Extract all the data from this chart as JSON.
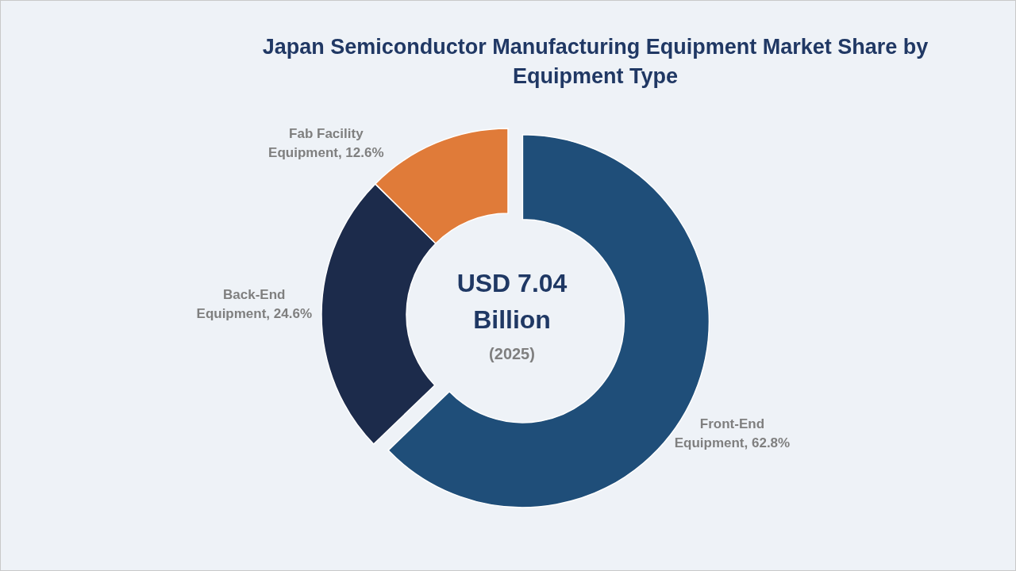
{
  "chart_data": {
    "type": "donut",
    "title": "Japan Semiconductor Manufacturing Equipment Market Share by Equipment Type",
    "categories": [
      "Front-End Equipment",
      "Back-End Equipment",
      "Fab Facility Equipment"
    ],
    "values": [
      62.8,
      24.6,
      12.6
    ],
    "colors": [
      "#1f4e79",
      "#1c2b4b",
      "#e07b39"
    ],
    "value_labels": [
      "62.8%",
      "24.6%",
      "12.6%"
    ],
    "annotations": [
      "USD 7.04 Billion",
      "(2025)"
    ]
  }
}
